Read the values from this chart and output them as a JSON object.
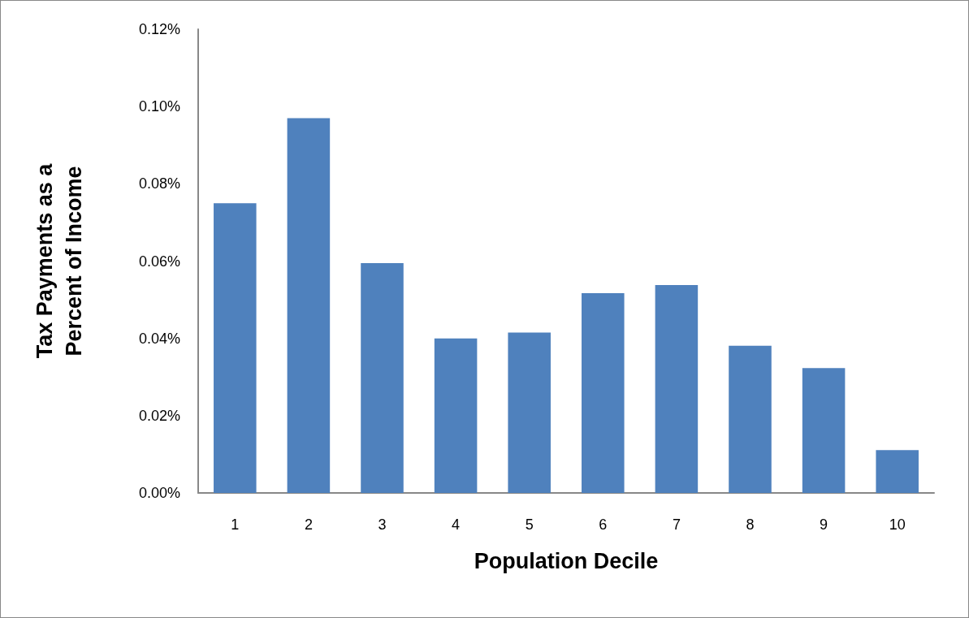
{
  "chart_data": {
    "type": "bar",
    "xlabel": "Population Decile",
    "ylabel": "Tax Payments as a\nPercent of Income",
    "categories": [
      "1",
      "2",
      "3",
      "4",
      "5",
      "6",
      "7",
      "8",
      "9",
      "10"
    ],
    "values": [
      0.075,
      0.097,
      0.0595,
      0.04,
      0.0415,
      0.0517,
      0.0538,
      0.0381,
      0.0323,
      0.0111
    ],
    "color": "#4f81bd",
    "ylim": [
      0,
      0.12
    ],
    "yticks": [
      {
        "value": 0,
        "label": "0.00%"
      },
      {
        "value": 0.02,
        "label": "0.02%"
      },
      {
        "value": 0.04,
        "label": "0.04%"
      },
      {
        "value": 0.06,
        "label": "0.06%"
      },
      {
        "value": 0.08,
        "label": "0.08%"
      },
      {
        "value": 0.1,
        "label": "0.10%"
      },
      {
        "value": 0.12,
        "label": "0.12%"
      }
    ],
    "grid": false
  }
}
